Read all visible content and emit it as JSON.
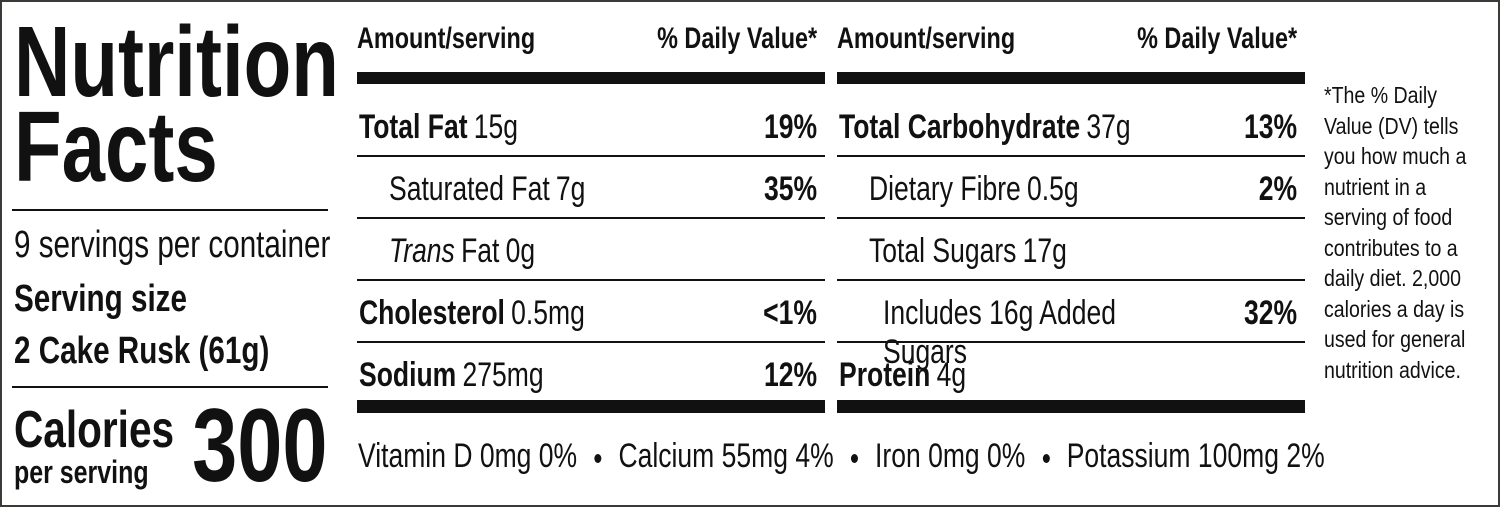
{
  "header": {
    "title_line1": "Nutrition",
    "title_line2": "Facts"
  },
  "servings": {
    "per_container": "9 servings per container",
    "size_label": "Serving size",
    "size_value": "2 Cake Rusk (61g)"
  },
  "calories": {
    "label": "Calories",
    "sublabel": "per serving",
    "value": "300"
  },
  "columns": [
    {
      "amount_heading": "Amount/serving",
      "dv_heading": "% Daily Value*",
      "rows": [
        {
          "name": "Total Fat",
          "amount": "15g",
          "dv": "19%"
        },
        {
          "name": "Saturated Fat",
          "amount": "7g",
          "dv": "35%"
        },
        {
          "name_italic": "Trans",
          "name": "Fat",
          "amount": "0g"
        },
        {
          "name": "Cholesterol",
          "amount": "0.5mg",
          "dv": "<1%"
        },
        {
          "name": "Sodium",
          "amount": "275mg",
          "dv": "12%"
        }
      ]
    },
    {
      "amount_heading": "Amount/serving",
      "dv_heading": "% Daily Value*",
      "rows": [
        {
          "name": "Total Carbohydrate",
          "amount": "37g",
          "dv": "13%"
        },
        {
          "name": "Dietary Fibre",
          "amount": "0.5g",
          "dv": "2%"
        },
        {
          "name": "Total Sugars",
          "amount": "17g"
        },
        {
          "name": "Includes 16g Added Sugars",
          "dv": "32%"
        },
        {
          "name": "Protein",
          "amount": "4g"
        }
      ]
    }
  ],
  "micronutrients": [
    "Vitamin D 0mg 0%",
    "Calcium 55mg 4%",
    "Iron 0mg 0%",
    "Potassium 100mg 2%"
  ],
  "footnote": "*The % Daily Value (DV) tells you how much a nutrient in a serving of food contributes to a daily diet. 2,000 calories a day is used for general nutrition advice."
}
